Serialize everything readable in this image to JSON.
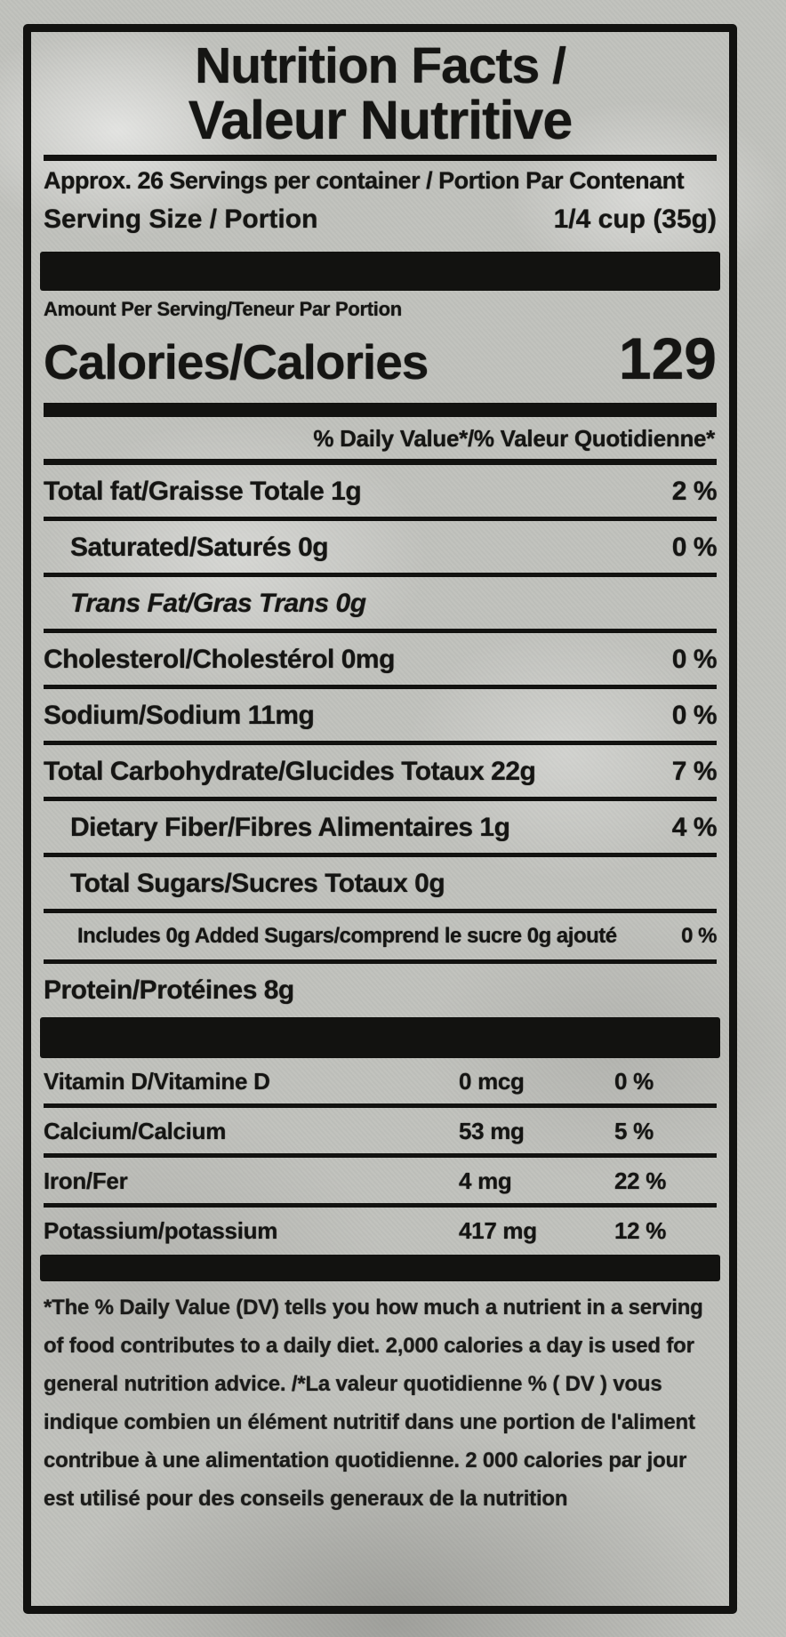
{
  "label": {
    "title_en": "Nutrition Facts /",
    "title_fr": "Valeur Nutritive",
    "servings_line": "Approx. 26 Servings per container / Portion Par Contenant",
    "serving_size_label": "Serving Size / Portion",
    "serving_size_value": "1/4 cup (35g)",
    "amount_per_serving": "Amount Per Serving/Teneur Par Portion",
    "calories_label": "Calories/Calories",
    "calories_value": "129",
    "daily_value_header": "% Daily Value*/% Valeur Quotidienne*",
    "nutrients": [
      {
        "label": "Total fat/Graisse Totale 1g",
        "pct": "2 %",
        "indent": 0
      },
      {
        "label": "Saturated/Saturés 0g",
        "pct": "0 %",
        "indent": 1
      },
      {
        "label": "Trans Fat/Gras Trans 0g",
        "pct": "",
        "indent": 1,
        "italic": true
      },
      {
        "label": "Cholesterol/Cholestérol 0mg",
        "pct": "0 %",
        "indent": 0
      },
      {
        "label": "Sodium/Sodium 11mg",
        "pct": "0 %",
        "indent": 0
      },
      {
        "label": "Total Carbohydrate/Glucides Totaux 22g",
        "pct": "7 %",
        "indent": 0
      },
      {
        "label": "Dietary Fiber/Fibres Alimentaires 1g",
        "pct": "4 %",
        "indent": 1
      },
      {
        "label": "Total Sugars/Sucres Totaux 0g",
        "pct": "",
        "indent": 1
      },
      {
        "label": "Includes 0g Added Sugars/comprend le sucre 0g ajouté",
        "pct": "0 %",
        "indent": 2,
        "small": true
      },
      {
        "label": "Protein/Protéines 8g",
        "pct": "",
        "indent": 0,
        "last": true
      }
    ],
    "minerals": [
      {
        "label": "Vitamin D/Vitamine D",
        "amount": "0 mcg",
        "pct": "0 %"
      },
      {
        "label": "Calcium/Calcium",
        "amount": "53 mg",
        "pct": "5 %"
      },
      {
        "label": "Iron/Fer",
        "amount": "4 mg",
        "pct": "22 %"
      },
      {
        "label": "Potassium/potassium",
        "amount": "417 mg",
        "pct": "12 %",
        "last": true
      }
    ],
    "footnote": "*The % Daily Value (DV) tells you how much a nutrient in a serving of food contributes to a daily diet. 2,000 calories a day is used for general nutrition advice. /*La valeur quotidienne % ( DV ) vous indique combien un élément nutritif dans une portion de l'aliment contribue à une alimentation quotidienne. 2 000 calories par jour est utilisé pour des conseils generaux de la nutrition",
    "colors": {
      "ink": "#121210",
      "background": "#c1c2bd"
    }
  }
}
